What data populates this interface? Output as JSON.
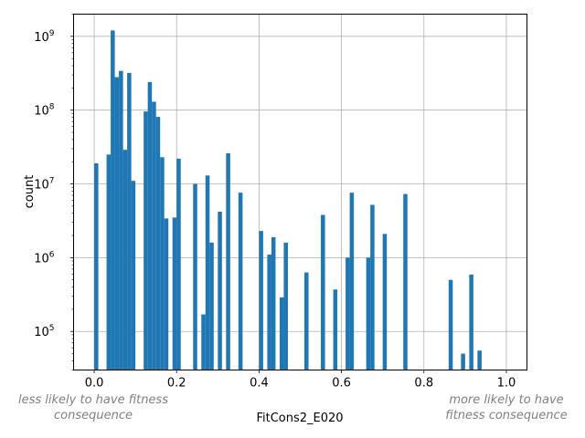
{
  "chart_data": {
    "type": "bar",
    "subtype": "histogram",
    "title": "",
    "xlabel": "FitCons2_E020",
    "ylabel": "count",
    "xlim": [
      -0.05,
      1.05
    ],
    "ylim": [
      30000,
      2000000000
    ],
    "yscale": "log",
    "grid": true,
    "color": "#1f77b4",
    "bin_width": 0.01,
    "x_ticks": [
      "0.0",
      "0.2",
      "0.4",
      "0.6",
      "0.8",
      "1.0"
    ],
    "y_ticks": [
      {
        "base": "10",
        "exp": "5"
      },
      {
        "base": "10",
        "exp": "6"
      },
      {
        "base": "10",
        "exp": "7"
      },
      {
        "base": "10",
        "exp": "8"
      },
      {
        "base": "10",
        "exp": "9"
      }
    ],
    "bins": [
      {
        "x": 0.0,
        "count": 19000000
      },
      {
        "x": 0.03,
        "count": 25000000
      },
      {
        "x": 0.04,
        "count": 1200000000
      },
      {
        "x": 0.05,
        "count": 280000000
      },
      {
        "x": 0.06,
        "count": 340000000
      },
      {
        "x": 0.07,
        "count": 29000000
      },
      {
        "x": 0.08,
        "count": 320000000
      },
      {
        "x": 0.09,
        "count": 11000000
      },
      {
        "x": 0.12,
        "count": 96000000
      },
      {
        "x": 0.13,
        "count": 240000000
      },
      {
        "x": 0.14,
        "count": 130000000
      },
      {
        "x": 0.15,
        "count": 81000000
      },
      {
        "x": 0.16,
        "count": 23000000
      },
      {
        "x": 0.17,
        "count": 3400000
      },
      {
        "x": 0.19,
        "count": 3500000
      },
      {
        "x": 0.2,
        "count": 22000000
      },
      {
        "x": 0.24,
        "count": 10000000
      },
      {
        "x": 0.26,
        "count": 170000
      },
      {
        "x": 0.27,
        "count": 13000000
      },
      {
        "x": 0.28,
        "count": 1600000
      },
      {
        "x": 0.3,
        "count": 4200000
      },
      {
        "x": 0.32,
        "count": 26000000
      },
      {
        "x": 0.35,
        "count": 7600000
      },
      {
        "x": 0.4,
        "count": 2300000
      },
      {
        "x": 0.42,
        "count": 1100000
      },
      {
        "x": 0.43,
        "count": 1900000
      },
      {
        "x": 0.45,
        "count": 290000
      },
      {
        "x": 0.46,
        "count": 1600000
      },
      {
        "x": 0.51,
        "count": 630000
      },
      {
        "x": 0.55,
        "count": 3800000
      },
      {
        "x": 0.58,
        "count": 370000
      },
      {
        "x": 0.61,
        "count": 1000000
      },
      {
        "x": 0.62,
        "count": 7600000
      },
      {
        "x": 0.66,
        "count": 1000000
      },
      {
        "x": 0.67,
        "count": 5200000
      },
      {
        "x": 0.7,
        "count": 2100000
      },
      {
        "x": 0.75,
        "count": 7300000
      },
      {
        "x": 0.86,
        "count": 500000
      },
      {
        "x": 0.89,
        "count": 50000
      },
      {
        "x": 0.91,
        "count": 590000
      },
      {
        "x": 0.93,
        "count": 55000
      }
    ],
    "annotations": {
      "left": [
        "less likely to have fitness",
        "consequence"
      ],
      "right": [
        "more likely to have",
        "fitness consequence"
      ]
    }
  }
}
